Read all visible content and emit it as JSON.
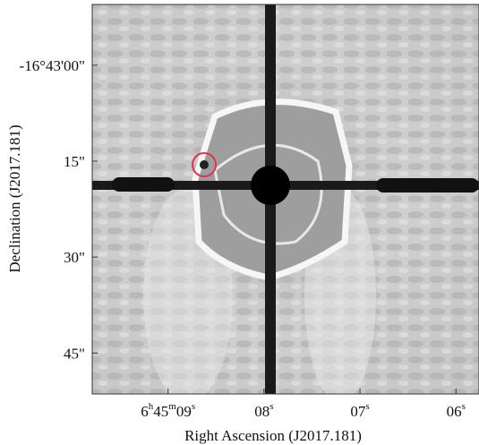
{
  "chart_data": {
    "type": "image",
    "xlabel": "Right Ascension (J2017.181)",
    "ylabel": "Declination (J2017.181)",
    "xlim": [
      9.79,
      5.76
    ],
    "xticks": [
      {
        "value": 9,
        "label": [
          "6",
          "h",
          "45",
          "m",
          "09",
          "s"
        ]
      },
      {
        "value": 8,
        "label": [
          "08",
          "s"
        ]
      },
      {
        "value": 7,
        "label": [
          "07",
          "s"
        ]
      },
      {
        "value": 6,
        "label": [
          "06",
          "s"
        ]
      }
    ],
    "ylim": [
      51.4,
      -9.5
    ],
    "yticks": [
      {
        "value": 0,
        "label": "-16°43'00\""
      },
      {
        "value": 15,
        "label": "15\""
      },
      {
        "value": 30,
        "label": "30\""
      },
      {
        "value": 45,
        "label": "45\""
      }
    ]
  }
}
